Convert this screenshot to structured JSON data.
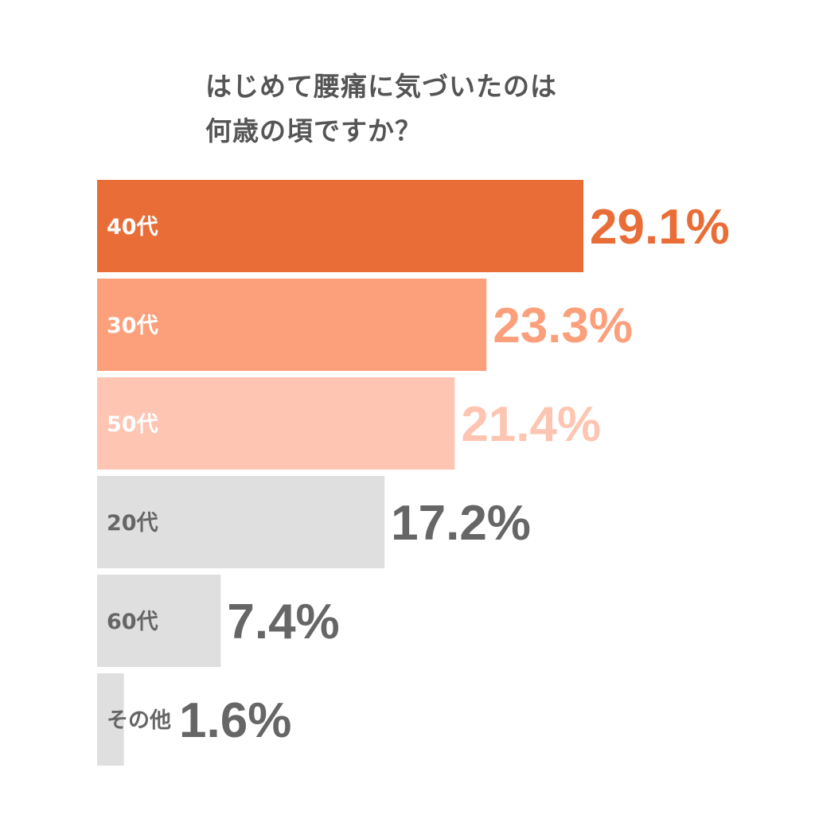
{
  "chart_data": {
    "type": "bar",
    "orientation": "horizontal",
    "title_lines": [
      "はじめて腰痛に気づいたのは",
      "何歳の頃ですか？"
    ],
    "categories": [
      "40代",
      "30代",
      "50代",
      "20代",
      "60代",
      "その他"
    ],
    "values": [
      29.1,
      23.3,
      21.4,
      17.2,
      7.4,
      1.6
    ],
    "value_labels": [
      "29.1%",
      "23.3%",
      "21.4%",
      "17.2%",
      "7.4%",
      "1.6%"
    ],
    "unit": "%",
    "xlim": [
      0,
      29.1
    ],
    "grid": false,
    "legend": "none",
    "bar_colors": [
      "#E96D37",
      "#FC9F7B",
      "#FEC5B2",
      "#DFDFDF",
      "#DFDFDF",
      "#DFDFDF"
    ],
    "category_label_colors": [
      "#FFFFFF",
      "#FFFFFF",
      "#FFFFFF",
      "#666666",
      "#666666",
      "#666666"
    ],
    "value_label_colors": [
      "#E96D37",
      "#FC9F7B",
      "#FEC5B2",
      "#666666",
      "#666666",
      "#666666"
    ]
  }
}
